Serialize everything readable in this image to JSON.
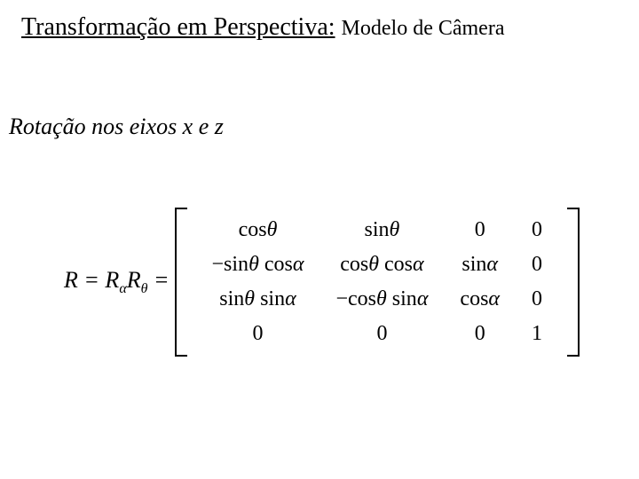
{
  "title": {
    "main": "Transformação em Perspectiva:",
    "sub": "Modelo de Câmera"
  },
  "subtitle": "Rotação nos eixos x e z",
  "equation": {
    "lhs_html": "R = R<sub class='sub-idx'>α</sub>R<sub class='sub-idx'>θ</sub> =",
    "matrix": {
      "rows": 4,
      "cols": 4,
      "cells": [
        [
          "cos<span class='var'>θ</span>",
          "sin<span class='var'>θ</span>",
          "0",
          "0"
        ],
        [
          "−sin<span class='var'>θ</span> cos<span class='var'>α</span>",
          "cos<span class='var'>θ</span> cos<span class='var'>α</span>",
          "sin<span class='var'>α</span>",
          "0"
        ],
        [
          "sin<span class='var'>θ</span> sin<span class='var'>α</span>",
          "−cos<span class='var'>θ</span> sin<span class='var'>α</span>",
          "cos<span class='var'>α</span>",
          "0"
        ],
        [
          "0",
          "0",
          "0",
          "1"
        ]
      ]
    }
  },
  "style": {
    "background_color": "#ffffff",
    "text_color": "#000000",
    "title_fontsize": 28,
    "title_sub_fontsize": 24,
    "subtitle_fontsize": 26,
    "equation_fontsize": 26,
    "matrix_cell_fontsize": 24,
    "font_family": "Times New Roman"
  }
}
